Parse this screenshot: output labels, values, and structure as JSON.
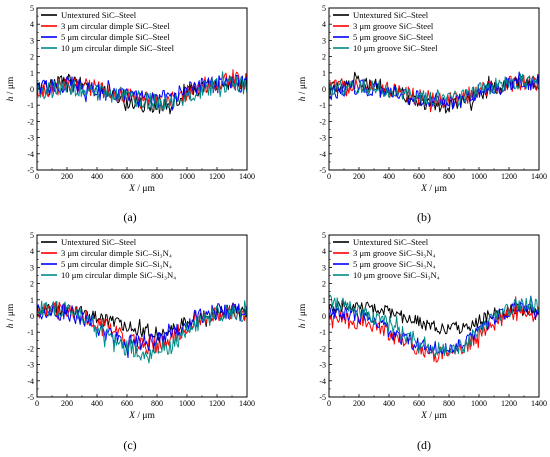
{
  "chart_data": [
    {
      "type": "line",
      "panel_label": "(a)",
      "xlabel": "X",
      "xunit": "μm",
      "ylabel": "h",
      "yunit": "μm",
      "xlim": [
        0,
        1400
      ],
      "ylim": [
        -5,
        5
      ],
      "xticks": [
        0,
        200,
        400,
        600,
        800,
        1000,
        1200,
        1400
      ],
      "yticks": [
        -5,
        -4,
        -3,
        -2,
        -1,
        0,
        1,
        2,
        3,
        4,
        5
      ],
      "legend_position": "top-left",
      "series": [
        {
          "name": "Untextured SiC–Steel",
          "color": "#000000",
          "x": [
            0,
            100,
            200,
            300,
            400,
            500,
            600,
            700,
            800,
            900,
            1000,
            1100,
            1200,
            1300,
            1400
          ],
          "y": [
            0.0,
            0.4,
            0.5,
            0.3,
            0.0,
            -0.4,
            -0.8,
            -1.0,
            -1.1,
            -0.8,
            -0.3,
            0.0,
            0.3,
            0.4,
            0.4
          ],
          "amplitude": 0.45
        },
        {
          "name": "3 μm circular dimple SiC–Steel",
          "color": "#ff0000",
          "x": [
            0,
            100,
            200,
            300,
            400,
            500,
            600,
            700,
            800,
            900,
            1000,
            1100,
            1200,
            1300,
            1400
          ],
          "y": [
            -0.1,
            0.1,
            0.3,
            0.2,
            0.0,
            -0.3,
            -0.5,
            -0.7,
            -0.8,
            -0.6,
            -0.2,
            0.2,
            0.4,
            0.5,
            0.5
          ],
          "amplitude": 0.55
        },
        {
          "name": "5 μm circular dimple SiC–Steel",
          "color": "#0000ff",
          "x": [
            0,
            100,
            200,
            300,
            400,
            500,
            600,
            700,
            800,
            900,
            1000,
            1100,
            1200,
            1300,
            1400
          ],
          "y": [
            0.0,
            0.2,
            0.3,
            0.1,
            -0.1,
            -0.3,
            -0.4,
            -0.6,
            -0.7,
            -0.5,
            -0.1,
            0.2,
            0.3,
            0.4,
            0.3
          ],
          "amplitude": 0.55
        },
        {
          "name": "10 μm circular dimple SiC–Steel",
          "color": "#008b8b",
          "x": [
            0,
            100,
            200,
            300,
            400,
            500,
            600,
            700,
            800,
            900,
            1000,
            1100,
            1200,
            1300,
            1400
          ],
          "y": [
            -0.2,
            0.0,
            0.1,
            0.0,
            -0.2,
            -0.3,
            -0.5,
            -0.7,
            -0.9,
            -0.8,
            -0.4,
            0.0,
            0.2,
            0.3,
            0.2
          ],
          "amplitude": 0.55
        }
      ]
    },
    {
      "type": "line",
      "panel_label": "(b)",
      "xlabel": "X",
      "xunit": "μm",
      "ylabel": "h",
      "yunit": "μm",
      "xlim": [
        0,
        1400
      ],
      "ylim": [
        -5,
        5
      ],
      "xticks": [
        0,
        200,
        400,
        600,
        800,
        1000,
        1200,
        1400
      ],
      "yticks": [
        -5,
        -4,
        -3,
        -2,
        -1,
        0,
        1,
        2,
        3,
        4,
        5
      ],
      "legend_position": "top-left",
      "series": [
        {
          "name": "Untextured SiC–Steel",
          "color": "#000000",
          "x": [
            0,
            100,
            200,
            300,
            400,
            500,
            600,
            700,
            800,
            900,
            1000,
            1100,
            1200,
            1300,
            1400
          ],
          "y": [
            0.0,
            0.4,
            0.5,
            0.3,
            0.0,
            -0.4,
            -0.8,
            -1.0,
            -1.1,
            -0.8,
            -0.3,
            0.0,
            0.3,
            0.4,
            0.4
          ],
          "amplitude": 0.45
        },
        {
          "name": "3 μm groove SiC–Steel",
          "color": "#ff0000",
          "x": [
            0,
            100,
            200,
            300,
            400,
            500,
            600,
            700,
            800,
            900,
            1000,
            1100,
            1200,
            1300,
            1400
          ],
          "y": [
            0.0,
            0.2,
            0.3,
            0.1,
            -0.1,
            -0.3,
            -0.5,
            -0.6,
            -0.7,
            -0.5,
            -0.1,
            0.2,
            0.3,
            0.4,
            0.3
          ],
          "amplitude": 0.5
        },
        {
          "name": "5 μm groove SiC–Steel",
          "color": "#0000ff",
          "x": [
            0,
            100,
            200,
            300,
            400,
            500,
            600,
            700,
            800,
            900,
            1000,
            1100,
            1200,
            1300,
            1400
          ],
          "y": [
            -0.2,
            0.0,
            0.1,
            0.0,
            -0.2,
            -0.4,
            -0.6,
            -0.7,
            -0.8,
            -0.6,
            -0.2,
            0.1,
            0.2,
            0.3,
            0.2
          ],
          "amplitude": 0.5
        },
        {
          "name": "10 μm groove SiC–Steel",
          "color": "#008b8b",
          "x": [
            0,
            100,
            200,
            300,
            400,
            500,
            600,
            700,
            800,
            900,
            1000,
            1100,
            1200,
            1300,
            1400
          ],
          "y": [
            -0.1,
            0.1,
            0.2,
            0.1,
            -0.1,
            -0.3,
            -0.5,
            -0.6,
            -0.7,
            -0.5,
            -0.1,
            0.2,
            0.4,
            0.5,
            0.4
          ],
          "amplitude": 0.5
        }
      ]
    },
    {
      "type": "line",
      "panel_label": "(c)",
      "xlabel": "X",
      "xunit": "μm",
      "ylabel": "h",
      "yunit": "μm",
      "xlim": [
        0,
        1400
      ],
      "ylim": [
        -5,
        5
      ],
      "xticks": [
        0,
        200,
        400,
        600,
        800,
        1000,
        1200,
        1400
      ],
      "yticks": [
        -5,
        -4,
        -3,
        -2,
        -1,
        0,
        1,
        2,
        3,
        4,
        5
      ],
      "legend_position": "top-left",
      "series": [
        {
          "name": "Untextured SiC–Steel",
          "color": "#000000",
          "x": [
            0,
            100,
            200,
            300,
            400,
            500,
            600,
            700,
            800,
            900,
            1000,
            1100,
            1200,
            1300,
            1400
          ],
          "y": [
            0.2,
            0.5,
            0.4,
            0.2,
            -0.1,
            -0.4,
            -0.7,
            -0.9,
            -1.0,
            -0.8,
            -0.3,
            0.0,
            0.2,
            0.3,
            0.3
          ],
          "amplitude": 0.4
        },
        {
          "name": "3 μm circular dimple SiC–Si₃N₄",
          "color": "#ff0000",
          "x": [
            0,
            100,
            200,
            300,
            400,
            500,
            600,
            700,
            800,
            900,
            1000,
            1100,
            1200,
            1300,
            1400
          ],
          "y": [
            0.3,
            0.4,
            0.3,
            0.0,
            -0.4,
            -0.9,
            -1.5,
            -1.9,
            -1.8,
            -1.4,
            -0.6,
            0.0,
            0.2,
            0.3,
            0.1
          ],
          "amplitude": 0.55
        },
        {
          "name": "5 μm circular dimple SiC–Si₃N₄",
          "color": "#0000ff",
          "x": [
            0,
            100,
            200,
            300,
            400,
            500,
            600,
            700,
            800,
            900,
            1000,
            1100,
            1200,
            1300,
            1400
          ],
          "y": [
            0.2,
            0.3,
            0.2,
            -0.1,
            -0.6,
            -1.2,
            -1.6,
            -1.7,
            -1.6,
            -1.2,
            -0.5,
            0.1,
            0.3,
            0.3,
            0.1
          ],
          "amplitude": 0.55
        },
        {
          "name": "10 μm circular dimple SiC–Si₃N₄",
          "color": "#008b8b",
          "x": [
            0,
            100,
            200,
            300,
            400,
            500,
            600,
            700,
            800,
            900,
            1000,
            1100,
            1200,
            1300,
            1400
          ],
          "y": [
            0.4,
            0.5,
            0.3,
            -0.1,
            -0.7,
            -1.4,
            -1.9,
            -2.2,
            -2.2,
            -1.8,
            -0.9,
            -0.2,
            0.1,
            0.2,
            0.0
          ],
          "amplitude": 0.55
        }
      ]
    },
    {
      "type": "line",
      "panel_label": "(d)",
      "xlabel": "X",
      "xunit": "μm",
      "ylabel": "h",
      "yunit": "μm",
      "xlim": [
        0,
        1400
      ],
      "ylim": [
        -5,
        5
      ],
      "xticks": [
        0,
        200,
        400,
        600,
        800,
        1000,
        1200,
        1400
      ],
      "yticks": [
        -5,
        -4,
        -3,
        -2,
        -1,
        0,
        1,
        2,
        3,
        4,
        5
      ],
      "legend_position": "top-left",
      "series": [
        {
          "name": "Untextured SiC–Steel",
          "color": "#000000",
          "x": [
            0,
            100,
            200,
            300,
            400,
            500,
            600,
            700,
            800,
            900,
            1000,
            1100,
            1200,
            1300,
            1400
          ],
          "y": [
            0.3,
            0.6,
            0.6,
            0.4,
            0.2,
            -0.1,
            -0.4,
            -0.7,
            -0.8,
            -0.7,
            -0.3,
            0.1,
            0.3,
            0.4,
            0.3
          ],
          "amplitude": 0.4
        },
        {
          "name": "3 μm groove SiC–Si₃N₄",
          "color": "#ff0000",
          "x": [
            0,
            100,
            200,
            300,
            400,
            500,
            600,
            700,
            800,
            900,
            1000,
            1100,
            1200,
            1300,
            1400
          ],
          "y": [
            0.0,
            -0.2,
            -0.4,
            -0.7,
            -1.1,
            -1.6,
            -2.0,
            -2.4,
            -2.3,
            -1.9,
            -1.2,
            -0.4,
            0.1,
            0.3,
            0.2
          ],
          "amplitude": 0.5
        },
        {
          "name": "5 μm groove SiC–Si₃N₄",
          "color": "#0000ff",
          "x": [
            0,
            100,
            200,
            300,
            400,
            500,
            600,
            700,
            800,
            900,
            1000,
            1100,
            1200,
            1300,
            1400
          ],
          "y": [
            0.3,
            0.2,
            0.0,
            -0.4,
            -0.9,
            -1.4,
            -1.8,
            -2.0,
            -1.9,
            -1.6,
            -0.9,
            -0.1,
            0.4,
            0.6,
            0.5
          ],
          "amplitude": 0.45
        },
        {
          "name": "10 μm groove SiC–Si₃N₄",
          "color": "#008b8b",
          "x": [
            0,
            100,
            200,
            300,
            400,
            500,
            600,
            700,
            800,
            900,
            1000,
            1100,
            1200,
            1300,
            1400
          ],
          "y": [
            0.8,
            0.7,
            0.4,
            0.0,
            -0.5,
            -1.1,
            -1.6,
            -2.0,
            -2.1,
            -1.8,
            -1.0,
            -0.2,
            0.4,
            0.7,
            0.7
          ],
          "amplitude": 0.5
        }
      ]
    }
  ]
}
